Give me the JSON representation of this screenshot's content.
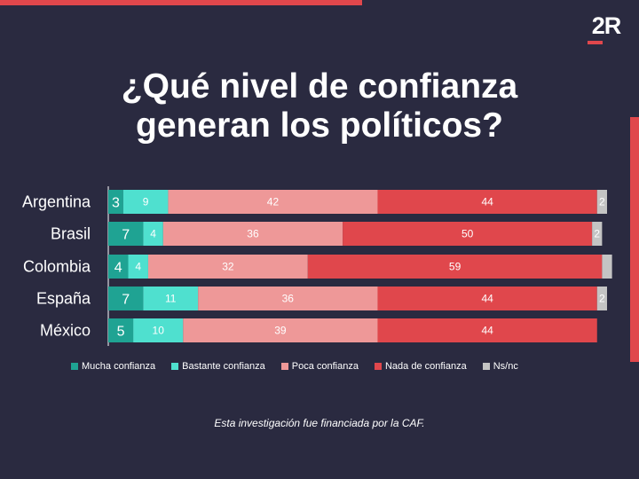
{
  "logo": {
    "text": "2R"
  },
  "title": {
    "line1": "¿Qué nivel de confianza",
    "line2": "generan los políticos?"
  },
  "footnote": "Esta investigación fue financiada por la CAF.",
  "colors": {
    "background": "#2a2a40",
    "accent": "#e0474c",
    "mucha": "#1fa393",
    "bastante": "#4fe0cf",
    "poca": "#ee9898",
    "nada": "#e0474c",
    "nsnc": "#c4c4c4"
  },
  "chart_data": {
    "type": "bar",
    "orientation": "horizontal",
    "stacked": true,
    "categories": [
      "Argentina",
      "Brasil",
      "Colombia",
      "España",
      "México"
    ],
    "series": [
      {
        "name": "Mucha confianza",
        "color": "#1fa393",
        "values": [
          3,
          7,
          4,
          7,
          5
        ]
      },
      {
        "name": "Bastante confianza",
        "color": "#4fe0cf",
        "values": [
          9,
          4,
          4,
          11,
          10
        ]
      },
      {
        "name": "Poca confianza",
        "color": "#ee9898",
        "values": [
          42,
          36,
          32,
          36,
          39
        ]
      },
      {
        "name": "Nada de confianza",
        "color": "#e0474c",
        "values": [
          44,
          50,
          59,
          44,
          44
        ]
      },
      {
        "name": "Ns/nc",
        "color": "#c4c4c4",
        "values": [
          2,
          2,
          2,
          2,
          0
        ]
      }
    ],
    "value_labels": [
      [
        "3",
        "9",
        "42",
        "44",
        "2"
      ],
      [
        "7",
        "4",
        "36",
        "50",
        "2"
      ],
      [
        "4",
        "4",
        "32",
        "59",
        ""
      ],
      [
        "7",
        "11",
        "36",
        "44",
        "2"
      ],
      [
        "5",
        "10",
        "39",
        "44",
        ""
      ]
    ],
    "xlim": [
      0,
      100
    ],
    "legend": "bottom"
  }
}
